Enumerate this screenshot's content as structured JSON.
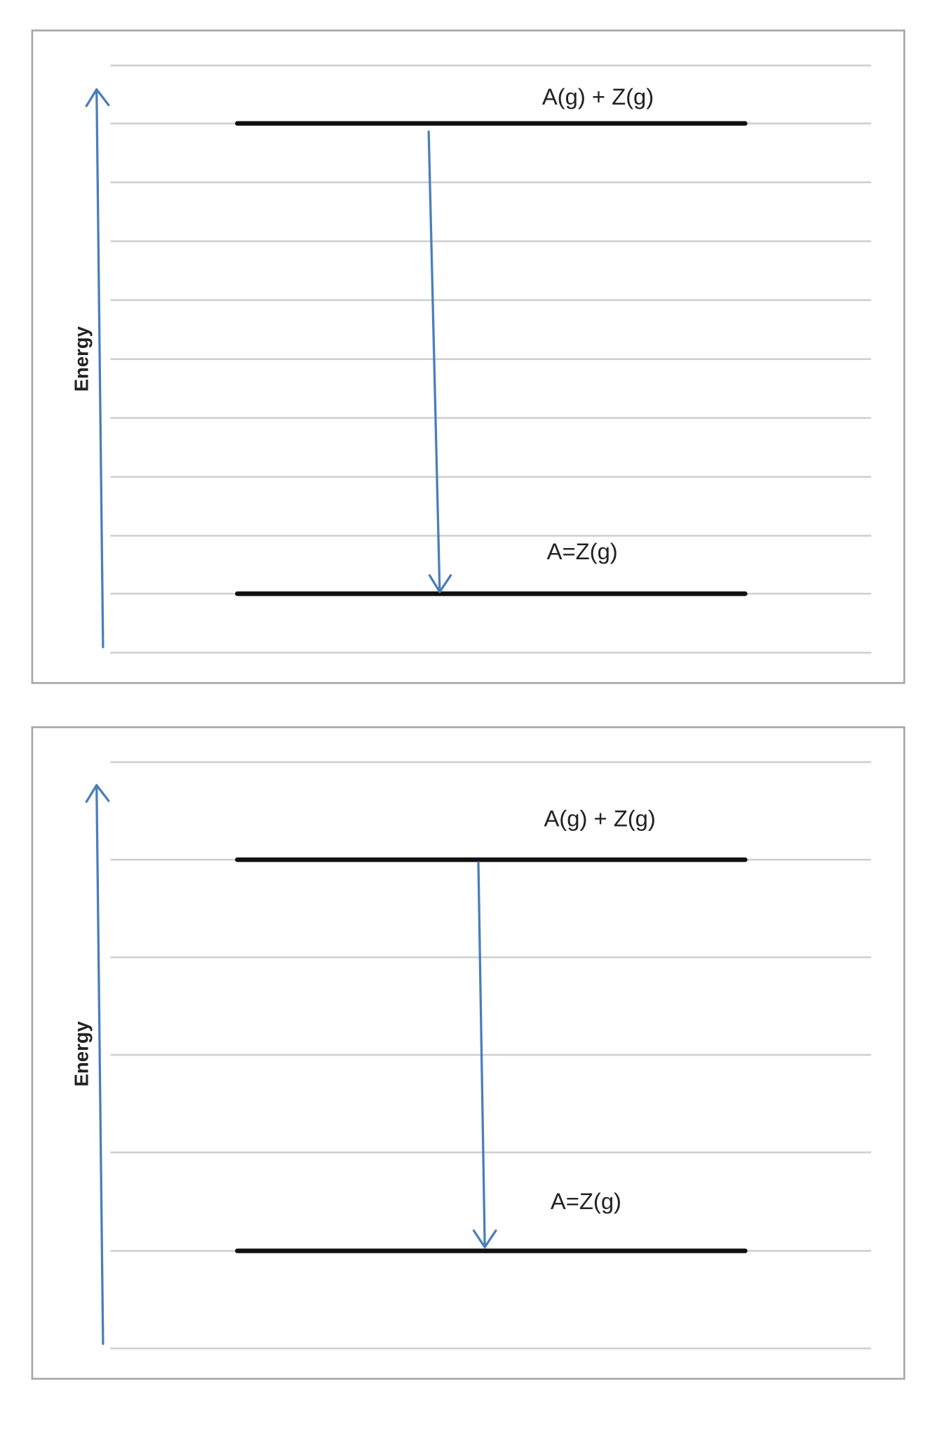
{
  "panels": [
    {
      "axis_label": "Energy",
      "upper_level": "A(g) + Z(g)",
      "lower_level": "A=Z(g)"
    },
    {
      "axis_label": "Energy",
      "upper_level": "A(g) + Z(g)",
      "lower_level": "A=Z(g)"
    }
  ]
}
